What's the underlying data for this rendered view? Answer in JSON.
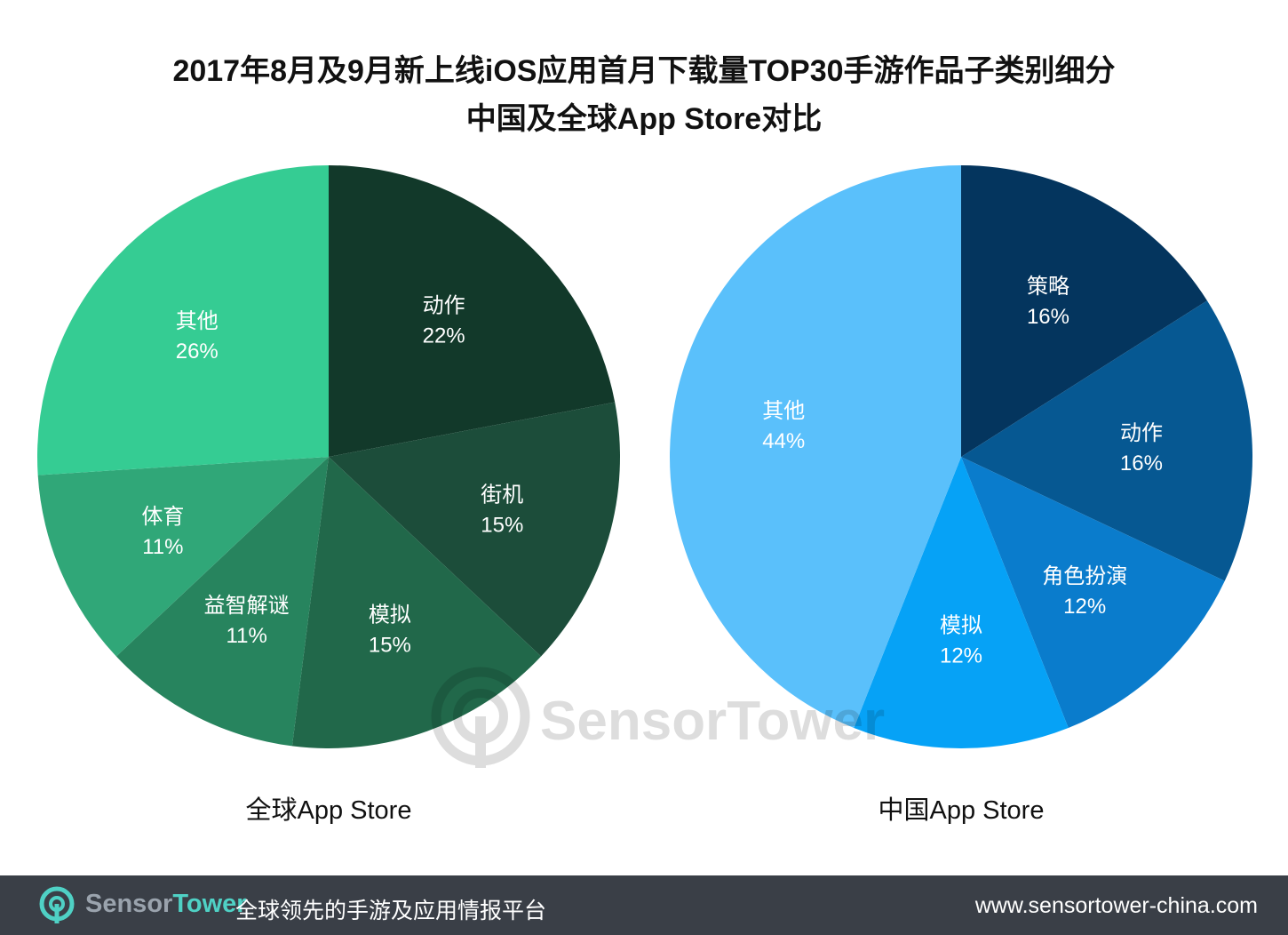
{
  "title": {
    "line1": "2017年8月及9月新上线iOS应用首月下载量TOP30手游作品子类别细分",
    "line2": "中国及全球App Store对比"
  },
  "chart_data": [
    {
      "type": "pie",
      "title": "全球App Store",
      "start": "12 o'clock, clockwise",
      "slices": [
        {
          "label": "动作",
          "value": 22,
          "display": "22%",
          "color": "#12392a"
        },
        {
          "label": "街机",
          "value": 15,
          "display": "15%",
          "color": "#1c4d3a"
        },
        {
          "label": "模拟",
          "value": 15,
          "display": "15%",
          "color": "#21684a"
        },
        {
          "label": "益智解谜",
          "value": 11,
          "display": "11%",
          "color": "#27845e"
        },
        {
          "label": "体育",
          "value": 11,
          "display": "11%",
          "color": "#30a778"
        },
        {
          "label": "其他",
          "value": 26,
          "display": "26%",
          "color": "#35cc93"
        }
      ]
    },
    {
      "type": "pie",
      "title": "中国App Store",
      "start": "12 o'clock, clockwise",
      "slices": [
        {
          "label": "策略",
          "value": 16,
          "display": "16%",
          "color": "#04355e"
        },
        {
          "label": "动作",
          "value": 16,
          "display": "16%",
          "color": "#065892"
        },
        {
          "label": "角色扮演",
          "value": 12,
          "display": "12%",
          "color": "#0a7ccc"
        },
        {
          "label": "模拟",
          "value": 12,
          "display": "12%",
          "color": "#06a2f6"
        },
        {
          "label": "其他",
          "value": 44,
          "display": "44%",
          "color": "#5ac0fb"
        }
      ]
    }
  ],
  "watermark": {
    "text": "SensorTower"
  },
  "footer": {
    "brand_part1": "Sensor",
    "brand_part2": "Tower",
    "tagline": "全球领先的手游及应用情报平台",
    "url": "www.sensortower-china.com"
  },
  "colors": {
    "footer_bg": "#3a3f47",
    "brand_accent": "#4fd1c5"
  }
}
